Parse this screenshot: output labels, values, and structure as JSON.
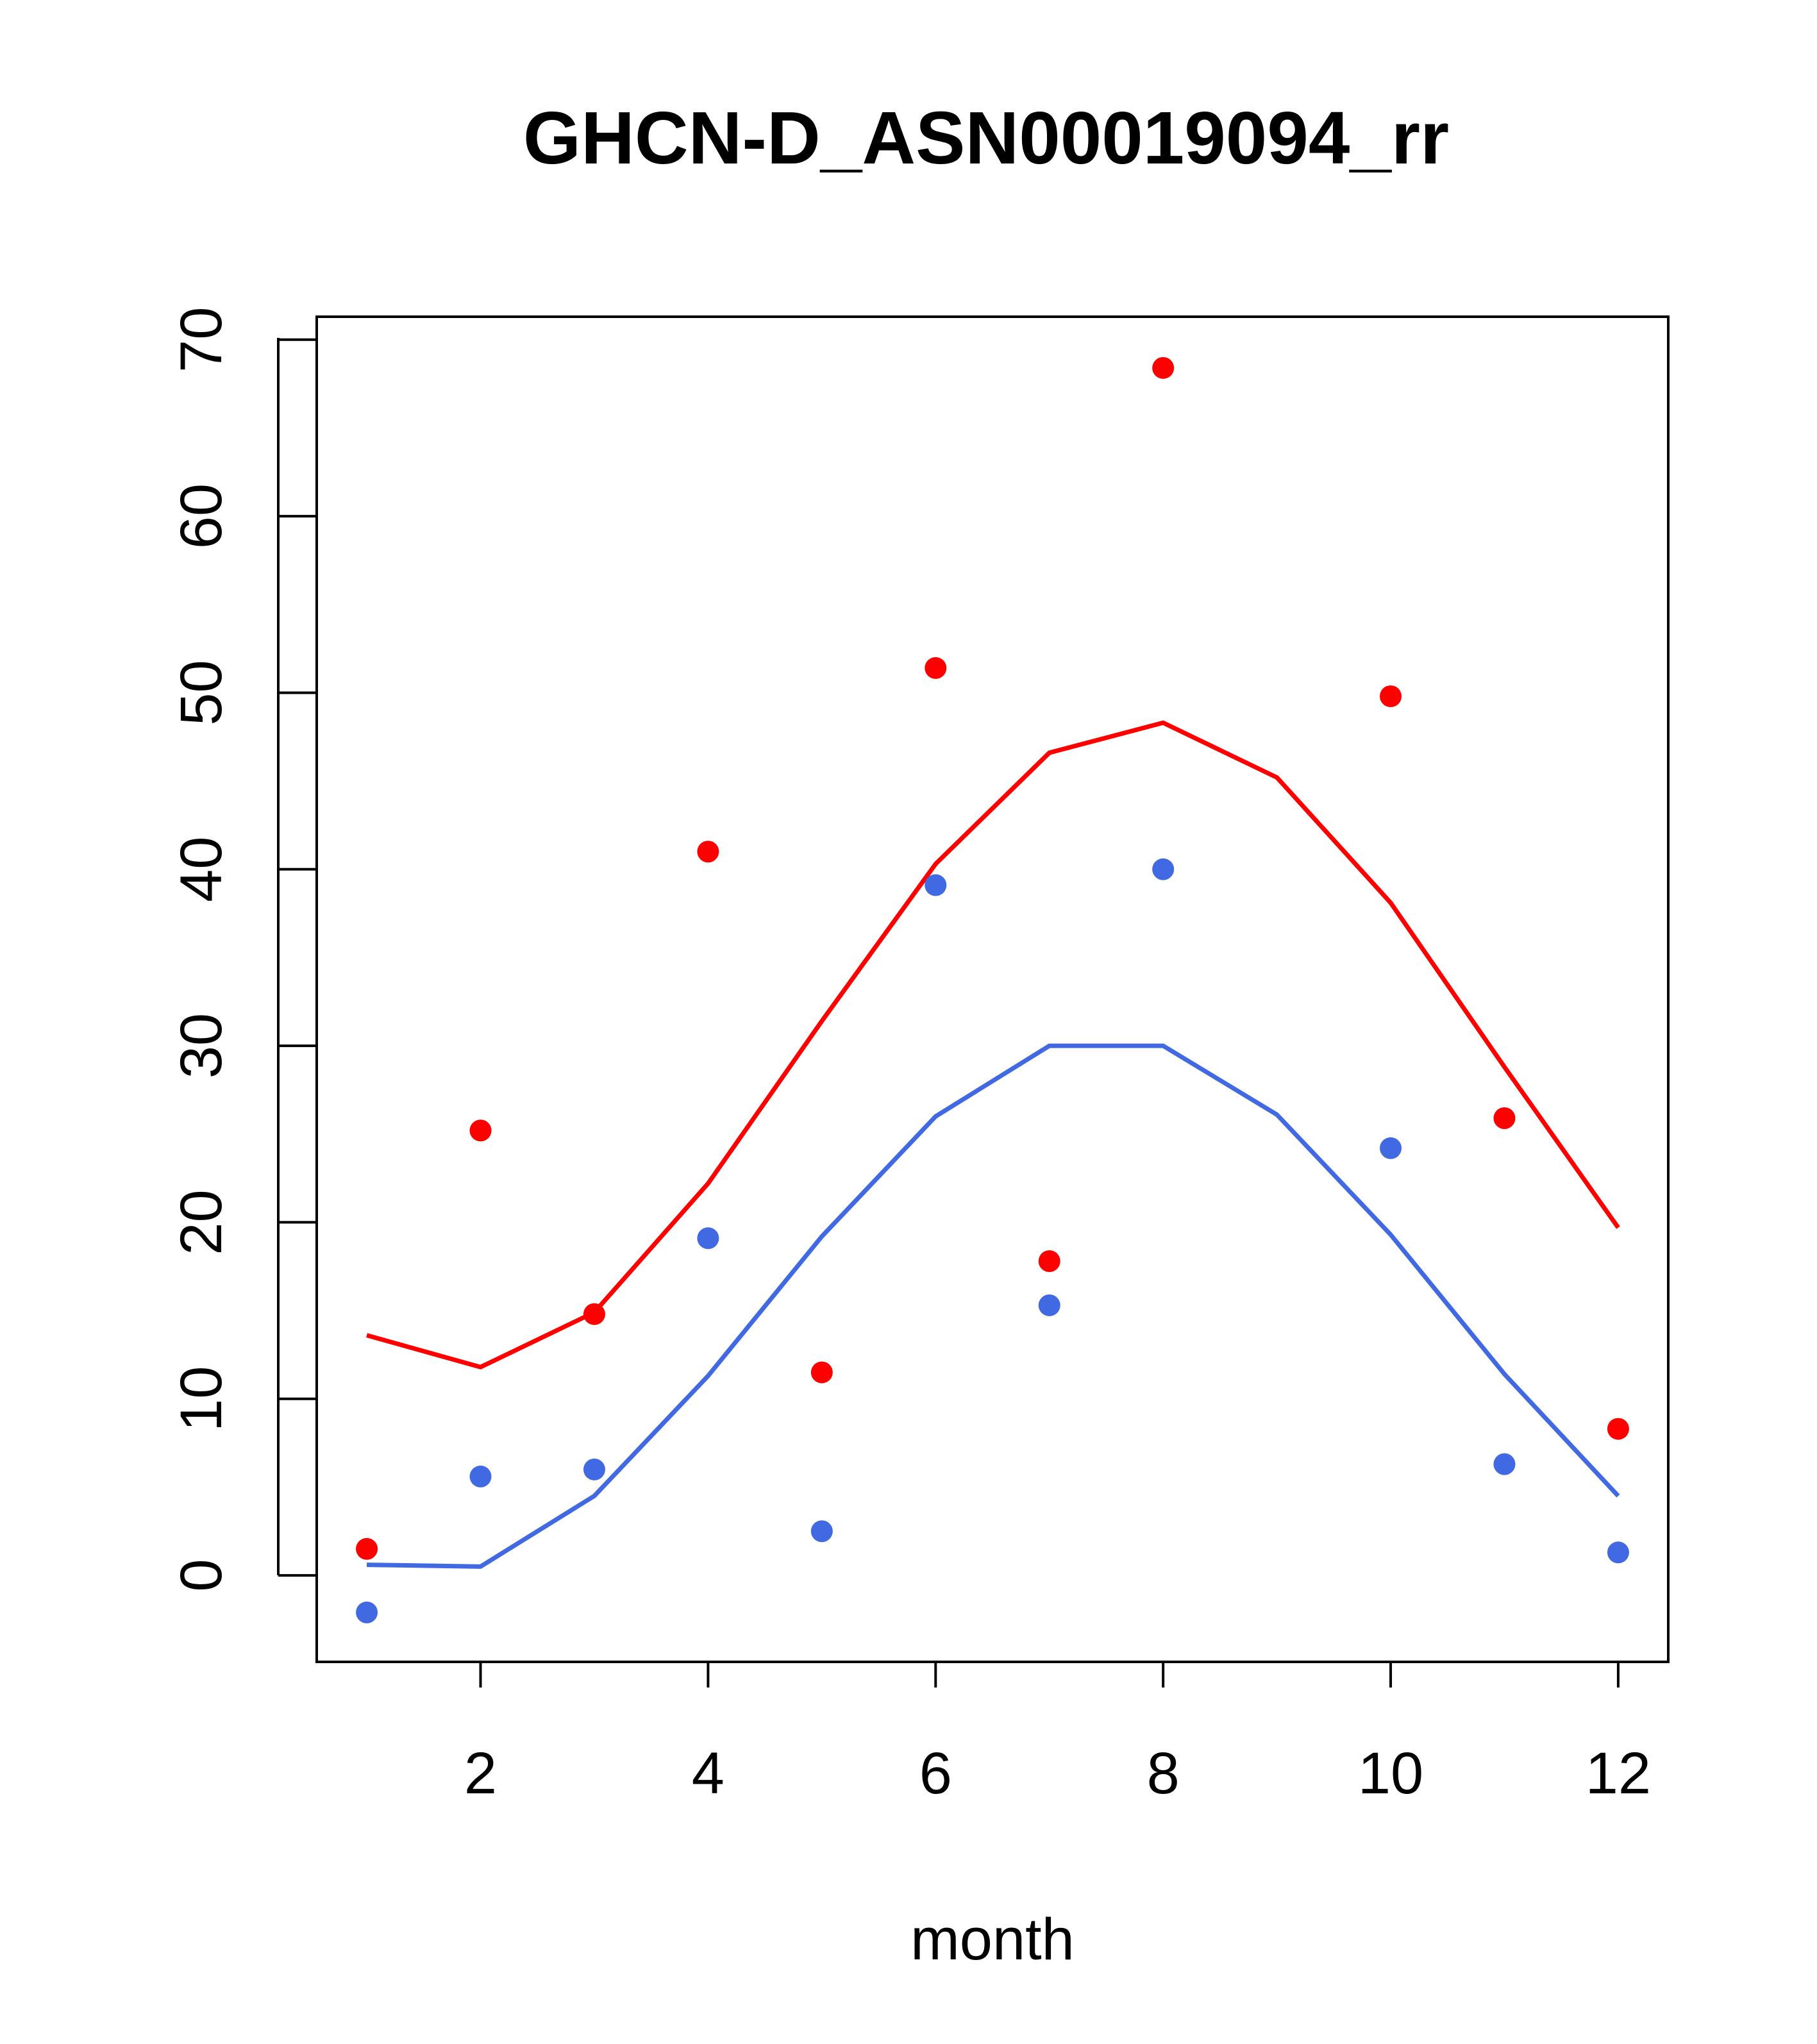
{
  "chart_data": {
    "type": "scatter",
    "title": "GHCN-D_ASN00019094_rr",
    "xlabel": "month",
    "ylabel": "",
    "xlim": [
      0.56,
      12.44
    ],
    "ylim": [
      -4.9,
      71.3
    ],
    "x_ticks": [
      2,
      4,
      6,
      8,
      10,
      12
    ],
    "x_tick_labels": [
      "2",
      "4",
      "6",
      "8",
      "10",
      "12"
    ],
    "y_ticks": [
      0,
      10,
      20,
      30,
      40,
      50,
      60,
      70
    ],
    "y_tick_labels": [
      "0",
      "10",
      "20",
      "30",
      "40",
      "50",
      "60",
      "70"
    ],
    "grid": false,
    "x": [
      1,
      2,
      3,
      4,
      5,
      6,
      7,
      8,
      9,
      10,
      11,
      12
    ],
    "series": [
      {
        "name": "red-points",
        "kind": "points",
        "color": "#ff0000",
        "x": [
          1,
          2,
          3,
          4,
          5,
          6,
          7,
          8,
          10,
          11,
          12
        ],
        "values": [
          1.5,
          25.2,
          14.8,
          41.0,
          11.5,
          51.4,
          17.8,
          68.4,
          49.8,
          25.9,
          8.3
        ]
      },
      {
        "name": "blue-points",
        "kind": "points",
        "color": "#4169e1",
        "x": [
          1,
          2,
          3,
          4,
          5,
          6,
          7,
          8,
          10,
          11,
          12
        ],
        "values": [
          -2.1,
          5.6,
          6.0,
          19.1,
          2.5,
          39.1,
          15.3,
          40.0,
          24.2,
          6.3,
          1.3
        ]
      },
      {
        "name": "red-line",
        "kind": "line",
        "color": "#ff0000",
        "x": [
          1,
          2,
          3,
          4,
          5,
          6,
          7,
          8,
          9,
          10,
          11,
          12
        ],
        "values": [
          13.6,
          11.8,
          14.9,
          22.2,
          31.4,
          40.3,
          46.6,
          48.3,
          45.2,
          38.1,
          28.8,
          19.7
        ]
      },
      {
        "name": "blue-line",
        "kind": "line",
        "color": "#4169e1",
        "x": [
          1,
          2,
          3,
          4,
          5,
          6,
          7,
          8,
          9,
          10,
          11,
          12
        ],
        "values": [
          0.6,
          0.5,
          4.5,
          11.3,
          19.2,
          26.0,
          30.0,
          30.0,
          26.1,
          19.3,
          11.4,
          4.5
        ]
      }
    ]
  }
}
